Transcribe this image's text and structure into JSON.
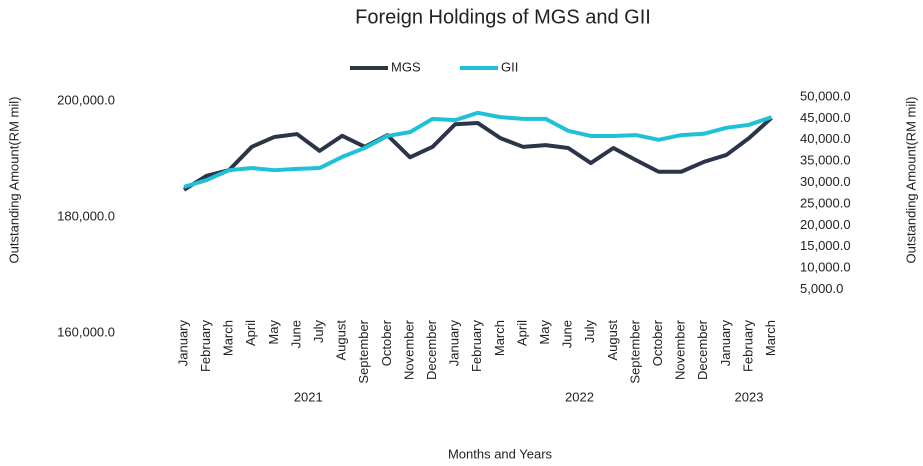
{
  "chart_data": {
    "type": "line",
    "title": "Foreign Holdings of MGS and GII",
    "x_label": "Months and Years",
    "y_label": "Outstanding Amount(RM mil)",
    "y2_label": "Outstanding Amount(RM mil)",
    "categories": [
      "January",
      "February",
      "March",
      "April",
      "May",
      "June",
      "July",
      "August",
      "September",
      "October",
      "November",
      "December",
      "January",
      "February",
      "March",
      "April",
      "May",
      "June",
      "July",
      "August",
      "September",
      "October",
      "November",
      "December",
      "January",
      "February",
      "March"
    ],
    "year_groups": [
      {
        "label": "2021",
        "count": 12
      },
      {
        "label": "2022",
        "count": 12
      },
      {
        "label": "2023",
        "count": 3
      }
    ],
    "series": [
      {
        "name": "MGS",
        "color": "#2a3547",
        "axis": "y",
        "values": [
          184700,
          187100,
          188100,
          192100,
          193800,
          194300,
          191400,
          194000,
          192100,
          194100,
          190300,
          192100,
          196000,
          196200,
          193600,
          192100,
          192400,
          191900,
          189300,
          191900,
          189800,
          187800,
          187800,
          189500,
          190700,
          193600,
          197100
        ]
      },
      {
        "name": "GII",
        "color": "#1fc1d9",
        "axis": "y2",
        "values": [
          29000,
          30600,
          32900,
          33400,
          32900,
          33200,
          33400,
          36000,
          38100,
          40900,
          41800,
          44900,
          44600,
          46300,
          45300,
          44900,
          44900,
          42100,
          40900,
          40900,
          41100,
          40000,
          41100,
          41400,
          42800,
          43500,
          45300
        ]
      }
    ],
    "ylim": [
      160000,
      200000
    ],
    "yticks": [
      {
        "value": 160000,
        "label": "160,000.0"
      },
      {
        "value": 180000,
        "label": "180,000.0"
      },
      {
        "value": 200000,
        "label": "200,000.0"
      }
    ],
    "y2lim": [
      0,
      50000
    ],
    "y2ticks": [
      {
        "value": 5000,
        "label": "5,000.0"
      },
      {
        "value": 10000,
        "label": "10,000.0"
      },
      {
        "value": 15000,
        "label": "15,000.0"
      },
      {
        "value": 20000,
        "label": "20,000.0"
      },
      {
        "value": 25000,
        "label": "25,000.0"
      },
      {
        "value": 30000,
        "label": "30,000.0"
      },
      {
        "value": 35000,
        "label": "35,000.0"
      },
      {
        "value": 40000,
        "label": "40,000.0"
      },
      {
        "value": 45000,
        "label": "45,000.0"
      },
      {
        "value": 50000,
        "label": "50,000.0"
      }
    ],
    "legend": "top",
    "grid": false
  }
}
